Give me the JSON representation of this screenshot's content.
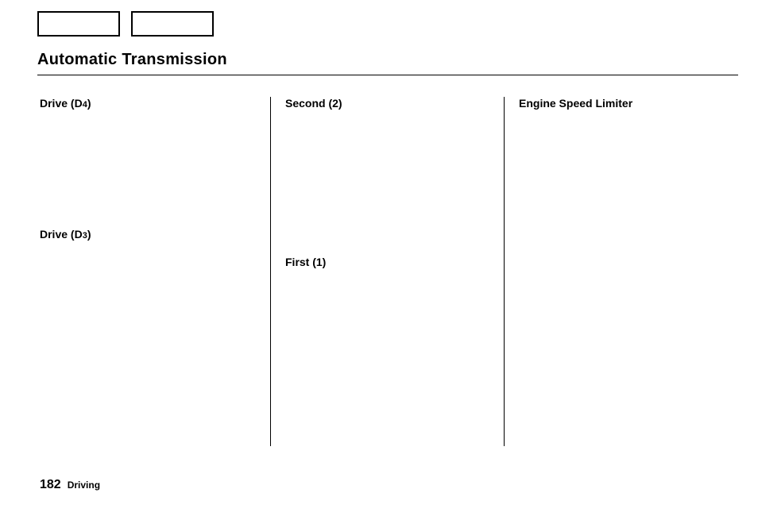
{
  "title": "Automatic Transmission",
  "columns": {
    "col1": {
      "heading_prefix": "Drive (D",
      "heading_sub": "4",
      "heading_suffix": ")",
      "sub_prefix": "Drive (D",
      "sub_sub": "3",
      "sub_suffix": ")"
    },
    "col2": {
      "heading": "Second (2)",
      "sub": "First (1)"
    },
    "col3": {
      "heading": "Engine Speed Limiter"
    }
  },
  "footer": {
    "page": "182",
    "section": "Driving"
  }
}
